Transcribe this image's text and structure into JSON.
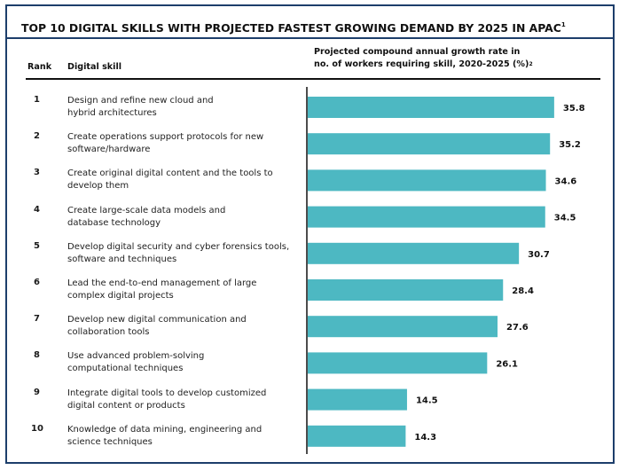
{
  "title": "TOP 10 DIGITAL SKILLS WITH PROJECTED FASTEST GROWING DEMAND BY 2025 IN APAC",
  "title_footnote": "1",
  "headers": {
    "rank": "Rank",
    "skill": "Digital skill",
    "metric_line1": "Projected compound annual growth rate in",
    "metric_line2": "no. of workers requiring skill, 2020-2025 (%)",
    "metric_footnote": "2"
  },
  "colors": {
    "bar": "#4db8c2",
    "border": "#1d3e6b",
    "axis": "#111111"
  },
  "rows": [
    {
      "rank": "1",
      "line1": "Design and refine new cloud and",
      "line2": "hybrid architectures",
      "value_label": "35.8"
    },
    {
      "rank": "2",
      "line1": "Create operations support protocols for new",
      "line2": "software/hardware",
      "value_label": "35.2"
    },
    {
      "rank": "3",
      "line1": "Create original digital content and the tools to",
      "line2": "develop them",
      "value_label": "34.6"
    },
    {
      "rank": "4",
      "line1": "Create large-scale data models and",
      "line2": "database technology",
      "value_label": "34.5"
    },
    {
      "rank": "5",
      "line1": "Develop digital security and cyber forensics tools,",
      "line2": "software and techniques",
      "value_label": "30.7"
    },
    {
      "rank": "6",
      "line1": "Lead the end-to-end management of large",
      "line2": "complex digital projects",
      "value_label": "28.4"
    },
    {
      "rank": "7",
      "line1": "Develop new digital communication and",
      "line2": "collaboration tools",
      "value_label": "27.6"
    },
    {
      "rank": "8",
      "line1": "Use advanced problem-solving",
      "line2": "computational techniques",
      "value_label": "26.1"
    },
    {
      "rank": "9",
      "line1": "Integrate digital tools to develop customized",
      "line2": "digital content or products",
      "value_label": "14.5"
    },
    {
      "rank": "10",
      "line1": "Knowledge of data mining, engineering and",
      "line2": "science techniques",
      "value_label": "14.3"
    }
  ],
  "chart_data": {
    "type": "bar",
    "orientation": "horizontal",
    "title": "TOP 10 DIGITAL SKILLS WITH PROJECTED FASTEST GROWING DEMAND BY 2025 IN APAC",
    "xlabel": "Projected compound annual growth rate in no. of workers requiring skill, 2020-2025 (%)",
    "ylabel": "Digital skill",
    "categories": [
      "Design and refine new cloud and hybrid architectures",
      "Create operations support protocols for new software/hardware",
      "Create original digital content and the tools to develop them",
      "Create large-scale data models and database technology",
      "Develop digital security and cyber forensics tools, software and techniques",
      "Lead the end-to-end management of large complex digital projects",
      "Develop new digital communication and collaboration tools",
      "Use advanced problem-solving computational techniques",
      "Integrate digital tools to develop customized digital content or products",
      "Knowledge of data mining, engineering and science techniques"
    ],
    "values": [
      35.8,
      35.2,
      34.6,
      34.5,
      30.7,
      28.4,
      27.6,
      26.1,
      14.5,
      14.3
    ],
    "xlim": [
      0,
      40
    ],
    "grid": false,
    "data_labels": true,
    "legend": "none"
  }
}
